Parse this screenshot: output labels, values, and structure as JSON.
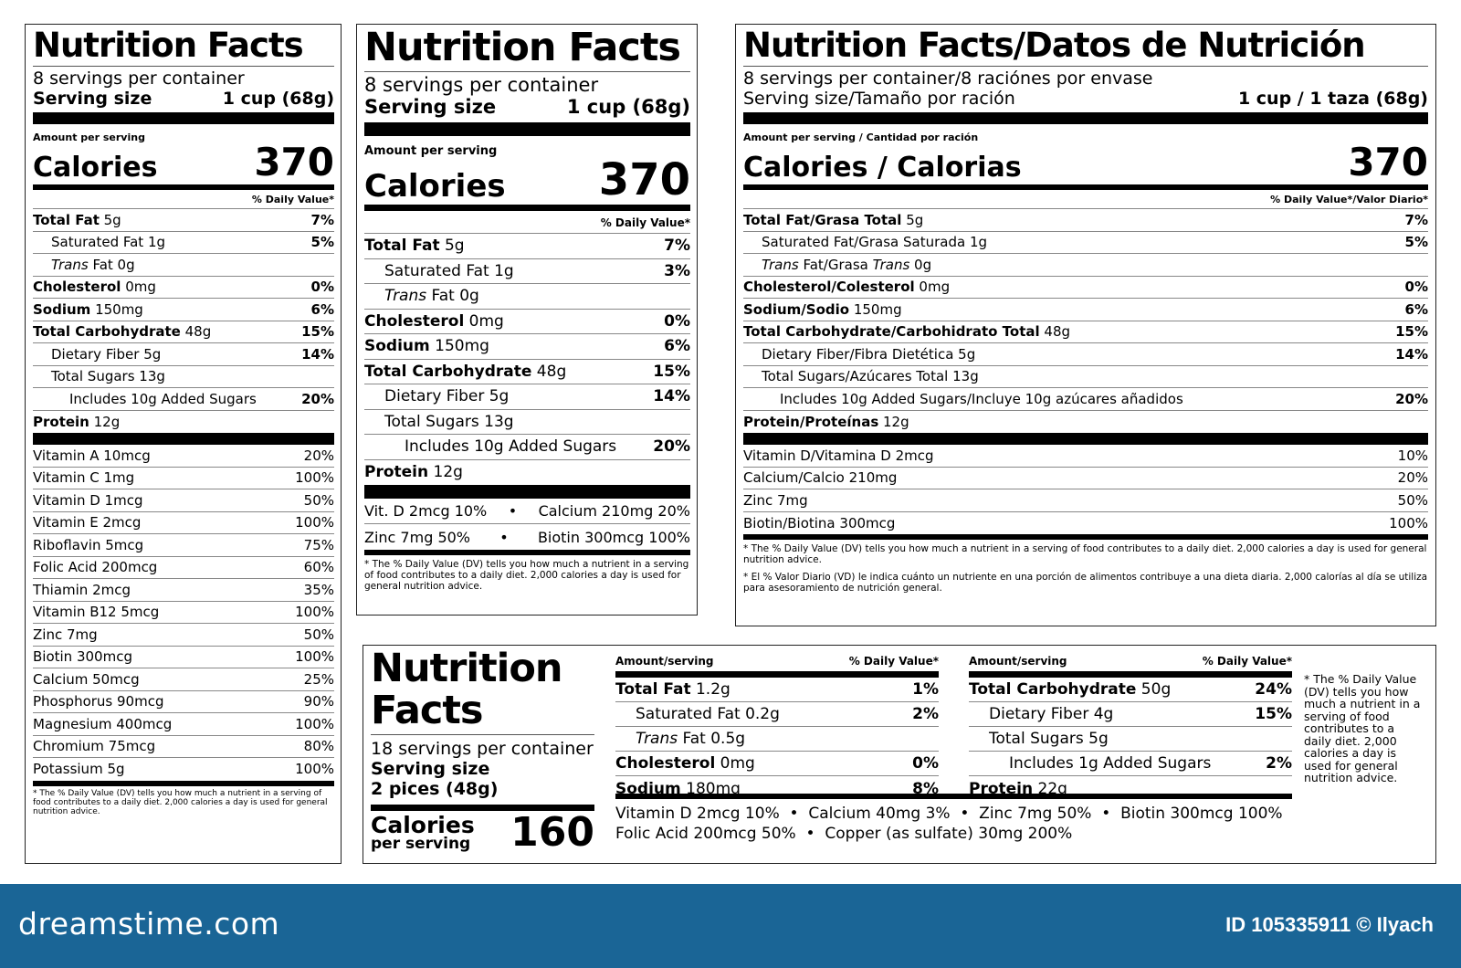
{
  "label1": {
    "title": "Nutrition Facts",
    "servings": "8 servings per container",
    "serving_size_label": "Serving size",
    "serving_size_value": "1 cup (68g)",
    "amount_per_serving": "Amount per serving",
    "calories_label": "Calories",
    "calories_value": "370",
    "dv_header": "% Daily Value*",
    "rows": [
      {
        "name": "Total Fat",
        "amount": "5g",
        "dv": "7%",
        "bold": true,
        "indent": 0
      },
      {
        "name": "Saturated Fat",
        "amount": "1g",
        "dv": "5%",
        "bold": false,
        "indent": 1
      },
      {
        "name": "Trans",
        "name2": "Fat",
        "amount": "0g",
        "dv": "",
        "bold": false,
        "indent": 1,
        "italic_first": true
      },
      {
        "name": "Cholesterol",
        "amount": "0mg",
        "dv": "0%",
        "bold": true,
        "indent": 0
      },
      {
        "name": "Sodium",
        "amount": "150mg",
        "dv": "6%",
        "bold": true,
        "indent": 0
      },
      {
        "name": "Total Carbohydrate",
        "amount": "48g",
        "dv": "15%",
        "bold": true,
        "indent": 0
      },
      {
        "name": "Dietary Fiber",
        "amount": "5g",
        "dv": "14%",
        "bold": false,
        "indent": 1
      },
      {
        "name": "Total Sugars",
        "amount": "13g",
        "dv": "",
        "bold": false,
        "indent": 1
      },
      {
        "name": "Includes 10g Added Sugars",
        "amount": "",
        "dv": "20%",
        "bold": false,
        "indent": 2
      },
      {
        "name": "Protein",
        "amount": "12g",
        "dv": "",
        "bold": true,
        "indent": 0
      }
    ],
    "vitamins": [
      {
        "name": "Vitamin A 10mcg",
        "dv": "20%"
      },
      {
        "name": "Vitamin C 1mg",
        "dv": "100%"
      },
      {
        "name": "Vitamin D 1mcg",
        "dv": "50%"
      },
      {
        "name": "Vitamin E 2mcg",
        "dv": "100%"
      },
      {
        "name": "Riboflavin 5mcg",
        "dv": "75%"
      },
      {
        "name": "Folic Acid 200mcg",
        "dv": "60%"
      },
      {
        "name": "Thiamin 2mcg",
        "dv": "35%"
      },
      {
        "name": "Vitamin B12 5mcg",
        "dv": "100%"
      },
      {
        "name": "Zinc 7mg",
        "dv": "50%"
      },
      {
        "name": "Biotin 300mcg",
        "dv": "100%"
      },
      {
        "name": "Calcium 50mcg",
        "dv": "25%"
      },
      {
        "name": "Phosphorus 90mcg",
        "dv": "90%"
      },
      {
        "name": "Magnesium 400mcg",
        "dv": "100%"
      },
      {
        "name": "Chromium 75mcg",
        "dv": "80%"
      },
      {
        "name": "Potassium 5g",
        "dv": "100%"
      }
    ],
    "footnote": "* The % Daily Value (DV) tells you how much a nutrient in a serving of food contributes to a daily diet. 2,000 calories a day is used for general nutrition advice."
  },
  "label2": {
    "title": "Nutrition Facts",
    "servings": "8 servings per container",
    "serving_size_label": "Serving size",
    "serving_size_value": "1 cup (68g)",
    "amount_per_serving": "Amount per serving",
    "calories_label": "Calories",
    "calories_value": "370",
    "dv_header": "% Daily Value*",
    "rows": [
      {
        "name": "Total Fat",
        "amount": "5g",
        "dv": "7%",
        "bold": true,
        "indent": 0
      },
      {
        "name": "Saturated Fat",
        "amount": "1g",
        "dv": "3%",
        "bold": false,
        "indent": 1
      },
      {
        "name": "Trans",
        "name2": "Fat",
        "amount": "0g",
        "dv": "",
        "bold": false,
        "indent": 1,
        "italic_first": true
      },
      {
        "name": "Cholesterol",
        "amount": "0mg",
        "dv": "0%",
        "bold": true,
        "indent": 0
      },
      {
        "name": "Sodium",
        "amount": "150mg",
        "dv": "6%",
        "bold": true,
        "indent": 0
      },
      {
        "name": "Total Carbohydrate",
        "amount": "48g",
        "dv": "15%",
        "bold": true,
        "indent": 0
      },
      {
        "name": "Dietary Fiber",
        "amount": "5g",
        "dv": "14%",
        "bold": false,
        "indent": 1
      },
      {
        "name": "Total Sugars",
        "amount": "13g",
        "dv": "",
        "bold": false,
        "indent": 1
      },
      {
        "name": "Includes 10g Added Sugars",
        "amount": "",
        "dv": "20%",
        "bold": false,
        "indent": 2
      },
      {
        "name": "Protein",
        "amount": "12g",
        "dv": "",
        "bold": true,
        "indent": 0
      }
    ],
    "vit_line1_a": "Vit. D 2mcg 10%",
    "vit_line1_b": "Calcium 210mg 20%",
    "vit_line2_a": "Zinc 7mg 50%",
    "vit_line2_b": "Biotin 300mcg 100%",
    "bullet": "•",
    "footnote": "* The % Daily Value (DV) tells you how much a nutrient in a serving of food contributes to a daily diet. 2,000 calories a day is used for general nutrition advice."
  },
  "label3": {
    "title": "Nutrition Facts/Datos de Nutrición",
    "servings": "8 servings per container/8 raciónes por envase",
    "serving_size_label": "Serving size/Tamaño por ración",
    "serving_size_value": "1 cup / 1 taza (68g)",
    "amount_per_serving": "Amount per serving / Cantidad por ración",
    "calories_label": "Calories / Calorias",
    "calories_value": "370",
    "dv_header": "% Daily Value*/Valor Diario*",
    "rows": [
      {
        "name": "Total Fat/Grasa Total",
        "amount": "5g",
        "dv": "7%",
        "bold": true,
        "indent": 0
      },
      {
        "name": "Saturated Fat/Grasa Saturada",
        "amount": "1g",
        "dv": "5%",
        "bold": false,
        "indent": 1
      },
      {
        "name": "Trans",
        "name2": "Fat/Grasa",
        "name3": "Trans",
        "amount": "0g",
        "dv": "",
        "bold": false,
        "indent": 1,
        "italic_first": true
      },
      {
        "name": "Cholesterol/Colesterol",
        "amount": "0mg",
        "dv": "0%",
        "bold": true,
        "indent": 0
      },
      {
        "name": "Sodium/Sodio",
        "amount": "150mg",
        "dv": "6%",
        "bold": true,
        "indent": 0
      },
      {
        "name": "Total Carbohydrate/Carbohidrato Total",
        "amount": "48g",
        "dv": "15%",
        "bold": true,
        "indent": 0
      },
      {
        "name": "Dietary Fiber/Fibra Dietética",
        "amount": "5g",
        "dv": "14%",
        "bold": false,
        "indent": 1
      },
      {
        "name": "Total Sugars/Azúcares Total",
        "amount": "13g",
        "dv": "",
        "bold": false,
        "indent": 1
      },
      {
        "name": "Includes 10g Added Sugars/Incluye 10g azúcares añadidos",
        "amount": "",
        "dv": "20%",
        "bold": false,
        "indent": 2
      },
      {
        "name": "Protein/Proteínas",
        "amount": "12g",
        "dv": "",
        "bold": true,
        "indent": 0
      }
    ],
    "vitamins": [
      {
        "name": "Vitamin D/Vitamina D 2mcg",
        "dv": "10%"
      },
      {
        "name": "Calcium/Calcio 210mg",
        "dv": "20%"
      },
      {
        "name": "Zinc 7mg",
        "dv": "50%"
      },
      {
        "name": "Biotin/Biotina 300mcg",
        "dv": "100%"
      }
    ],
    "footnote1": "* The % Daily Value (DV) tells you how much a nutrient in a serving of food contributes to a daily diet. 2,000 calories a day is used for general nutrition advice.",
    "footnote2": "* El % Valor Diario (VD) le indica cuánto un nutriente en una porción de alimentos contribuye a una dieta diaria. 2,000 calorías al día se utiliza para asesoramiento de nutrición general."
  },
  "label4": {
    "title_line1": "Nutrition",
    "title_line2": "Facts",
    "servings": "18 servings per container",
    "serving_size_label": "Serving size",
    "serving_size_value": "2 pices (48g)",
    "calories_label": "Calories",
    "per_serving": "per serving",
    "calories_value": "160",
    "col_amount": "Amount/serving",
    "col_dv": "% Daily Value*",
    "left_rows": [
      {
        "name": "Total Fat",
        "amount": "1.2g",
        "dv": "1%",
        "bold": true,
        "indent": 0
      },
      {
        "name": "Saturated Fat",
        "amount": "0.2g",
        "dv": "2%",
        "bold": false,
        "indent": 1
      },
      {
        "name": "Trans",
        "name2": "Fat",
        "amount": "0.5g",
        "dv": "",
        "bold": false,
        "indent": 1,
        "italic_first": true
      },
      {
        "name": "Cholesterol",
        "amount": "0mg",
        "dv": "0%",
        "bold": true,
        "indent": 0
      },
      {
        "name": "Sodium",
        "amount": "180mg",
        "dv": "8%",
        "bold": true,
        "indent": 0
      }
    ],
    "right_rows": [
      {
        "name": "Total Carbohydrate",
        "amount": "50g",
        "dv": "24%",
        "bold": true,
        "indent": 0
      },
      {
        "name": "Dietary Fiber",
        "amount": "4g",
        "dv": "15%",
        "bold": false,
        "indent": 1
      },
      {
        "name": "Total Sugars",
        "amount": "5g",
        "dv": "",
        "bold": false,
        "indent": 1
      },
      {
        "name": "Includes 1g Added Sugars",
        "amount": "",
        "dv": "2%",
        "bold": false,
        "indent": 2
      },
      {
        "name": "Protein",
        "amount": "22g",
        "dv": "",
        "bold": true,
        "indent": 0
      }
    ],
    "vit_line1": "Vitamin D 2mcg 10%  •  Calcium 40mg 3%  •  Zinc 7mg 50%  •  Biotin 300mcg 100%",
    "vit_line2": "Folic Acid 200mcg 50%  •  Copper (as sulfate) 30mg 200%",
    "footnote": "* The % Daily Value (DV) tells you how much a nutrient in a serving of food contributes to a daily diet. 2,000 calories a day is used for general nutrition advice."
  },
  "footer": {
    "logo": "dreamstime.com",
    "id_text": "ID 105335911 © Ilyach",
    "bg_color": "#1a6596"
  }
}
